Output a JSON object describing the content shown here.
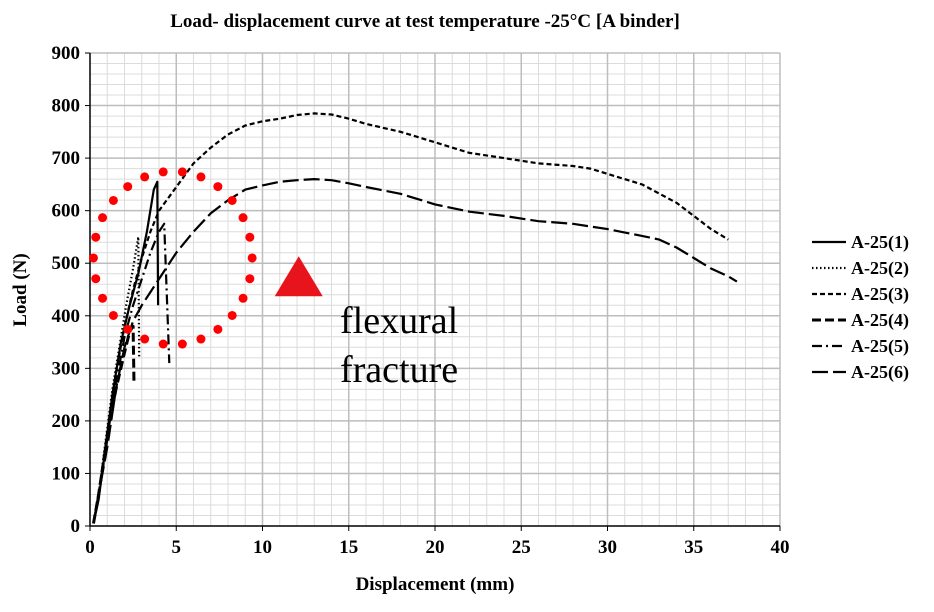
{
  "chart_data": {
    "type": "line",
    "title": "Load- displacement  curve at test temperature -25°C [A binder]",
    "xlabel": "Displacement (mm)",
    "ylabel": "Load (N)",
    "xlim": [
      0,
      40
    ],
    "ylim": [
      0,
      900
    ],
    "xticks": [
      0,
      5,
      10,
      15,
      20,
      25,
      30,
      35,
      40
    ],
    "yticks": [
      0,
      100,
      200,
      300,
      400,
      500,
      600,
      700,
      800,
      900
    ],
    "x_minor_step": 1,
    "y_minor_step": 20,
    "grid": true,
    "legend_position": "right",
    "series": [
      {
        "name": "A-25(1)",
        "dash": "solid",
        "points": [
          [
            0.2,
            5
          ],
          [
            0.5,
            50
          ],
          [
            0.9,
            150
          ],
          [
            1.3,
            250
          ],
          [
            1.8,
            350
          ],
          [
            2.3,
            420
          ],
          [
            2.8,
            480
          ],
          [
            3.3,
            560
          ],
          [
            3.7,
            640
          ],
          [
            3.9,
            655
          ],
          [
            3.95,
            420
          ]
        ]
      },
      {
        "name": "A-25(2)",
        "dash": "dotted",
        "points": [
          [
            0.2,
            5
          ],
          [
            0.5,
            60
          ],
          [
            0.9,
            160
          ],
          [
            1.3,
            260
          ],
          [
            1.7,
            340
          ],
          [
            2.1,
            420
          ],
          [
            2.5,
            490
          ],
          [
            2.8,
            550
          ],
          [
            2.85,
            320
          ]
        ]
      },
      {
        "name": "A-25(3)",
        "dash": "short-dash",
        "points": [
          [
            0.2,
            5
          ],
          [
            0.6,
            80
          ],
          [
            1,
            180
          ],
          [
            1.5,
            290
          ],
          [
            2,
            380
          ],
          [
            2.5,
            450
          ],
          [
            3,
            510
          ],
          [
            3.5,
            560
          ],
          [
            4,
            600
          ],
          [
            5,
            645
          ],
          [
            6,
            690
          ],
          [
            7,
            720
          ],
          [
            8,
            745
          ],
          [
            9,
            762
          ],
          [
            10,
            770
          ],
          [
            11,
            775
          ],
          [
            12,
            782
          ],
          [
            13,
            785
          ],
          [
            14,
            783
          ],
          [
            15,
            775
          ],
          [
            16,
            765
          ],
          [
            18,
            750
          ],
          [
            20,
            730
          ],
          [
            22,
            710
          ],
          [
            24,
            700
          ],
          [
            26,
            690
          ],
          [
            28,
            685
          ],
          [
            29,
            680
          ],
          [
            30,
            670
          ],
          [
            32,
            650
          ],
          [
            34,
            615
          ],
          [
            35,
            590
          ],
          [
            36,
            565
          ],
          [
            37,
            545
          ]
        ]
      },
      {
        "name": "A-25(4)",
        "dash": "dash",
        "points": [
          [
            0.2,
            5
          ],
          [
            0.5,
            60
          ],
          [
            1,
            170
          ],
          [
            1.5,
            260
          ],
          [
            2,
            330
          ],
          [
            2.3,
            370
          ],
          [
            2.5,
            380
          ],
          [
            2.55,
            270
          ]
        ]
      },
      {
        "name": "A-25(5)",
        "dash": "dash-dot",
        "points": [
          [
            0.2,
            5
          ],
          [
            0.6,
            80
          ],
          [
            1,
            170
          ],
          [
            1.5,
            270
          ],
          [
            2,
            360
          ],
          [
            2.5,
            420
          ],
          [
            3,
            470
          ],
          [
            3.5,
            520
          ],
          [
            4,
            560
          ],
          [
            4.3,
            575
          ],
          [
            4.6,
            310
          ]
        ]
      },
      {
        "name": "A-25(6)",
        "dash": "long-dash",
        "points": [
          [
            0.2,
            5
          ],
          [
            0.5,
            60
          ],
          [
            1,
            150
          ],
          [
            1.5,
            260
          ],
          [
            2,
            340
          ],
          [
            2.5,
            390
          ],
          [
            3,
            420
          ],
          [
            3.5,
            445
          ],
          [
            4,
            470
          ],
          [
            5,
            520
          ],
          [
            6,
            560
          ],
          [
            7,
            595
          ],
          [
            8,
            620
          ],
          [
            9,
            640
          ],
          [
            10,
            648
          ],
          [
            11,
            655
          ],
          [
            12,
            658
          ],
          [
            13,
            660
          ],
          [
            14,
            658
          ],
          [
            15,
            652
          ],
          [
            16,
            645
          ],
          [
            18,
            632
          ],
          [
            20,
            612
          ],
          [
            22,
            598
          ],
          [
            24,
            590
          ],
          [
            26,
            580
          ],
          [
            28,
            575
          ],
          [
            30,
            565
          ],
          [
            32,
            552
          ],
          [
            33,
            545
          ],
          [
            34,
            530
          ],
          [
            35,
            510
          ],
          [
            36,
            490
          ],
          [
            37,
            475
          ],
          [
            37.5,
            465
          ]
        ]
      }
    ],
    "annotation": {
      "text_line1": "flexural",
      "text_line2": "fracture",
      "marker_color": "#ff0000",
      "triangle_color": "#e8141b",
      "circle_center": [
        4.8,
        510
      ],
      "circle_radius_x": 4.6,
      "circle_radius_y": 165,
      "triangle_at": [
        12.1,
        460
      ]
    }
  }
}
